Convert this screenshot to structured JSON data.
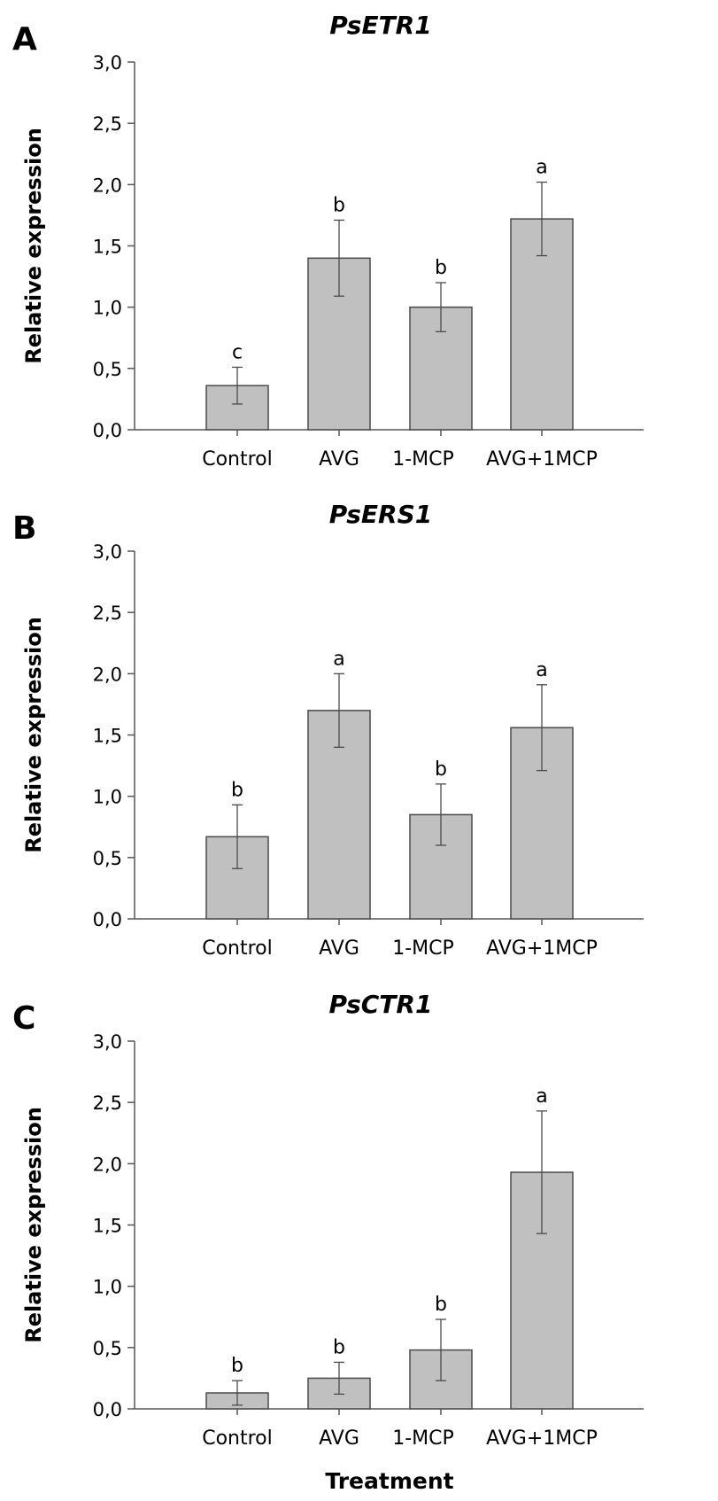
{
  "colors": {
    "bar_fill": "#c0c0c0",
    "bar_stroke": "#4a4a4a",
    "axis": "#555555",
    "text": "#000000"
  },
  "x_axis_title": "Treatment",
  "chart_data": [
    {
      "type": "bar",
      "panel": "A",
      "title": "PsETR1",
      "ylabel": "Relative expression",
      "ylim": [
        0,
        3.0
      ],
      "yticks": [
        "0,0",
        "0,5",
        "1,0",
        "1,5",
        "2,0",
        "2,5",
        "3,0"
      ],
      "categories": [
        "Control",
        "AVG",
        "1-MCP",
        "AVG+1MCP"
      ],
      "values": [
        0.36,
        1.4,
        1.0,
        1.72
      ],
      "errors": [
        0.15,
        0.31,
        0.2,
        0.3
      ],
      "significance": [
        "c",
        "b",
        "b",
        "a"
      ],
      "grid": false
    },
    {
      "type": "bar",
      "panel": "B",
      "title": "PsERS1",
      "ylabel": "Relative expression",
      "ylim": [
        0,
        3.0
      ],
      "yticks": [
        "0,0",
        "0,5",
        "1,0",
        "1,5",
        "2,0",
        "2,5",
        "3,0"
      ],
      "categories": [
        "Control",
        "AVG",
        "1-MCP",
        "AVG+1MCP"
      ],
      "values": [
        0.67,
        1.7,
        0.85,
        1.56
      ],
      "errors": [
        0.26,
        0.3,
        0.25,
        0.35
      ],
      "significance": [
        "b",
        "a",
        "b",
        "a"
      ],
      "grid": false
    },
    {
      "type": "bar",
      "panel": "C",
      "title": "PsCTR1",
      "ylabel": "Relative expression",
      "ylim": [
        0,
        3.0
      ],
      "yticks": [
        "0,0",
        "0,5",
        "1,0",
        "1,5",
        "2,0",
        "2,5",
        "3,0"
      ],
      "categories": [
        "Control",
        "AVG",
        "1-MCP",
        "AVG+1MCP"
      ],
      "values": [
        0.13,
        0.25,
        0.48,
        1.93
      ],
      "errors": [
        0.1,
        0.13,
        0.25,
        0.5
      ],
      "significance": [
        "b",
        "b",
        "b",
        "a"
      ],
      "grid": false
    }
  ]
}
